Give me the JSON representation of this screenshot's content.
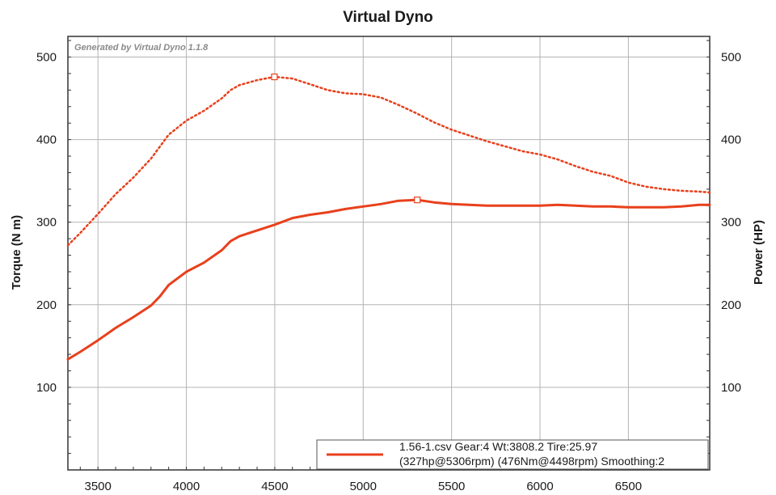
{
  "watermark": "Generated by Virtual Dyno 1.1.8",
  "colors": {
    "series": "#e8401c",
    "grid": "#b4b4b4",
    "frame": "#333333"
  },
  "chart_data": {
    "type": "line",
    "title": "Virtual Dyno",
    "xlabel": "",
    "ylabel_left": "Torque (N m)",
    "ylabel_right": "Power (HP)",
    "xlim": [
      3330,
      6960
    ],
    "ylim_left": [
      0,
      525
    ],
    "ylim_right": [
      0,
      525
    ],
    "x_ticks": [
      3500,
      4000,
      4500,
      5000,
      5500,
      6000,
      6500
    ],
    "y_ticks_left": [
      100,
      200,
      300,
      400,
      500
    ],
    "y_ticks_right": [
      100,
      200,
      300,
      400,
      500
    ],
    "grid": true,
    "legend_position": "bottom-right",
    "legend": [
      "1.56-1.csv Gear:4 Wt:3808.2 Tire:25.97",
      "(327hp@5306rpm) (476Nm@4498rpm) Smoothing:2"
    ],
    "series": [
      {
        "name": "Torque",
        "axis": "left",
        "style": "dotted",
        "x": [
          3330,
          3400,
          3500,
          3600,
          3700,
          3800,
          3900,
          4000,
          4100,
          4200,
          4250,
          4300,
          4400,
          4498,
          4600,
          4700,
          4800,
          4900,
          5000,
          5100,
          5200,
          5300,
          5400,
          5500,
          5600,
          5700,
          5800,
          5900,
          6000,
          6100,
          6200,
          6300,
          6400,
          6500,
          6600,
          6700,
          6800,
          6900,
          6960
        ],
        "values": [
          272,
          287,
          310,
          334,
          354,
          377,
          406,
          423,
          435,
          450,
          460,
          466,
          472,
          476,
          474,
          467,
          460,
          456,
          455,
          451,
          442,
          432,
          421,
          412,
          405,
          398,
          392,
          386,
          382,
          376,
          368,
          361,
          356,
          348,
          343,
          340,
          338,
          337,
          336
        ]
      },
      {
        "name": "Power",
        "axis": "right",
        "style": "solid",
        "x": [
          3330,
          3400,
          3500,
          3600,
          3700,
          3800,
          3850,
          3900,
          4000,
          4100,
          4200,
          4250,
          4300,
          4400,
          4500,
          4600,
          4700,
          4800,
          4900,
          5000,
          5100,
          5200,
          5306,
          5400,
          5500,
          5600,
          5700,
          5800,
          5900,
          6000,
          6100,
          6200,
          6300,
          6400,
          6500,
          6600,
          6700,
          6800,
          6900,
          6960
        ],
        "values": [
          134,
          143,
          157,
          172,
          185,
          199,
          210,
          224,
          240,
          251,
          266,
          277,
          283,
          290,
          297,
          305,
          309,
          312,
          316,
          319,
          322,
          326,
          327,
          324,
          322,
          321,
          320,
          320,
          320,
          320,
          321,
          320,
          319,
          319,
          318,
          318,
          318,
          319,
          321,
          321
        ]
      }
    ],
    "peak_markers": [
      {
        "series": "Torque",
        "x": 4498,
        "y": 476
      },
      {
        "series": "Power",
        "x": 5306,
        "y": 327
      }
    ]
  }
}
